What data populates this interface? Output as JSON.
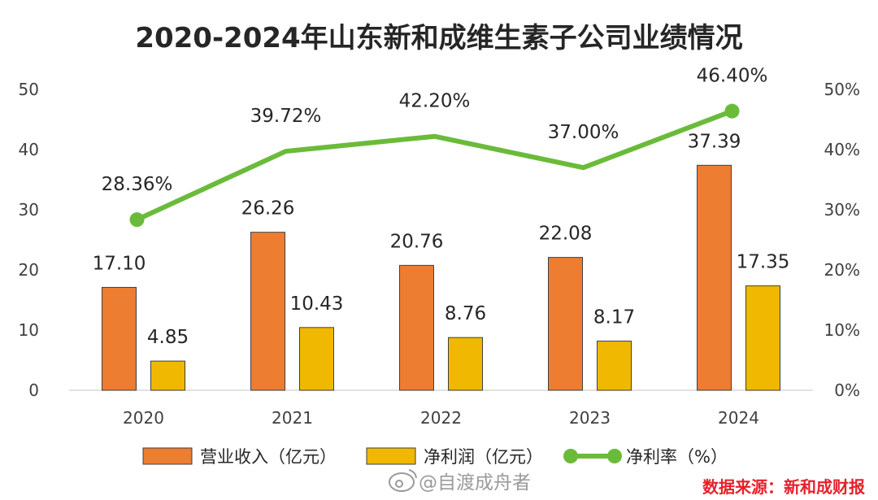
{
  "colors": {
    "revenue": "#ED7D31",
    "profit": "#F0B800",
    "margin": "#6BBB3A",
    "source": "#E8202A"
  },
  "watermark": {
    "icon": "weibo-icon",
    "text": "@自渡成舟者"
  },
  "source_note": "数据来源：新和成财报",
  "chart_data": {
    "type": "bar",
    "title": "2020-2024年山东新和成维生素子公司业绩情况",
    "categories": [
      "2020",
      "2021",
      "2022",
      "2023",
      "2024"
    ],
    "series": [
      {
        "name": "营业收入（亿元）",
        "kind": "bar",
        "axis": "left",
        "values": [
          17.1,
          26.26,
          20.76,
          22.08,
          37.39
        ],
        "labels": [
          "17.10",
          "26.26",
          "20.76",
          "22.08",
          "37.39"
        ]
      },
      {
        "name": "净利润（亿元）",
        "kind": "bar",
        "axis": "left",
        "values": [
          4.85,
          10.43,
          8.76,
          8.17,
          17.35
        ],
        "labels": [
          "4.85",
          "10.43",
          "8.76",
          "8.17",
          "17.35"
        ]
      },
      {
        "name": "净利率（%）",
        "kind": "line",
        "axis": "right",
        "values": [
          28.36,
          39.72,
          42.2,
          37.0,
          46.4
        ],
        "labels": [
          "28.36%",
          "39.72%",
          "42.20%",
          "37.00%",
          "46.40%"
        ]
      }
    ],
    "y_left": {
      "ylim": [
        0,
        50
      ],
      "ticks": [
        "0",
        "10",
        "20",
        "30",
        "40",
        "50"
      ]
    },
    "y_right": {
      "ylim": [
        0,
        50
      ],
      "ticks": [
        "0%",
        "10%",
        "20%",
        "30%",
        "40%",
        "50%"
      ]
    },
    "grid": false,
    "legend": "bottom"
  }
}
